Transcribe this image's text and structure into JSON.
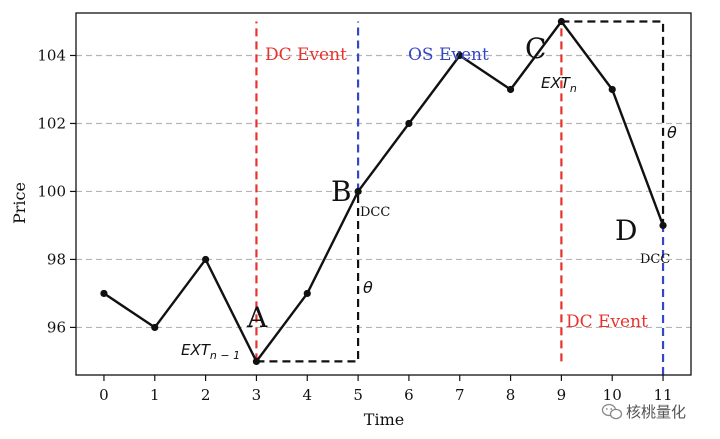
{
  "chart_data": {
    "type": "line",
    "title": "",
    "xlabel": "Time",
    "ylabel": "Price",
    "xlim": [
      -0.55,
      11.55
    ],
    "ylim": [
      94.6,
      105.25
    ],
    "grid": "horizontal dashed",
    "x_ticks": [
      0,
      1,
      2,
      3,
      4,
      5,
      6,
      7,
      8,
      9,
      10,
      11
    ],
    "y_ticks": [
      96,
      98,
      100,
      102,
      104
    ],
    "series": [
      {
        "name": "Price",
        "color": "#111111",
        "x": [
          0,
          1,
          2,
          3,
          4,
          5,
          6,
          7,
          8,
          9,
          10,
          11
        ],
        "y": [
          97,
          96,
          98,
          95,
          97,
          100,
          102,
          104,
          103,
          105,
          103,
          99
        ]
      }
    ],
    "event_lines": [
      {
        "name": "dc-event-line-1",
        "x": 3,
        "y_from": 95,
        "y_to": 105,
        "color": "#e8322c"
      },
      {
        "name": "os-event-line-1",
        "x": 5,
        "y_from": 100,
        "y_to": 105,
        "color": "#3546c8"
      },
      {
        "name": "dc-event-line-2",
        "x": 9,
        "y_from": 95,
        "y_to": 105,
        "color": "#e8322c"
      },
      {
        "name": "os-event-line-2",
        "x": 11,
        "y_from": 94.6,
        "y_to": 99,
        "color": "#3546c8"
      }
    ],
    "threshold_boxes": [
      {
        "name": "theta-box-up",
        "x_from": 3,
        "x_to": 5,
        "y_bottom": 95,
        "y_top": 100,
        "side": "right"
      },
      {
        "name": "theta-box-down",
        "x_from": 9,
        "x_to": 11,
        "y_bottom": 99,
        "y_top": 105,
        "side": "right"
      }
    ],
    "annotations": {
      "dc_event_1": {
        "text": "DC Event",
        "color": "#e8322c"
      },
      "os_event": {
        "text": "OS Event",
        "color": "#3546c8"
      },
      "dc_event_2": {
        "text": "DC Event",
        "color": "#e8322c"
      },
      "point_a": "A",
      "point_b": "B",
      "point_c": "C",
      "point_d": "D",
      "dcc_b": "DCC",
      "dcc_d": "DCC",
      "ext_prev": "EXT",
      "ext_prev_sub": "n − 1",
      "ext_curr": "EXT",
      "ext_curr_sub": "n",
      "theta_1": "θ",
      "theta_2": "θ"
    }
  },
  "watermark": {
    "text": "核桃量化"
  }
}
